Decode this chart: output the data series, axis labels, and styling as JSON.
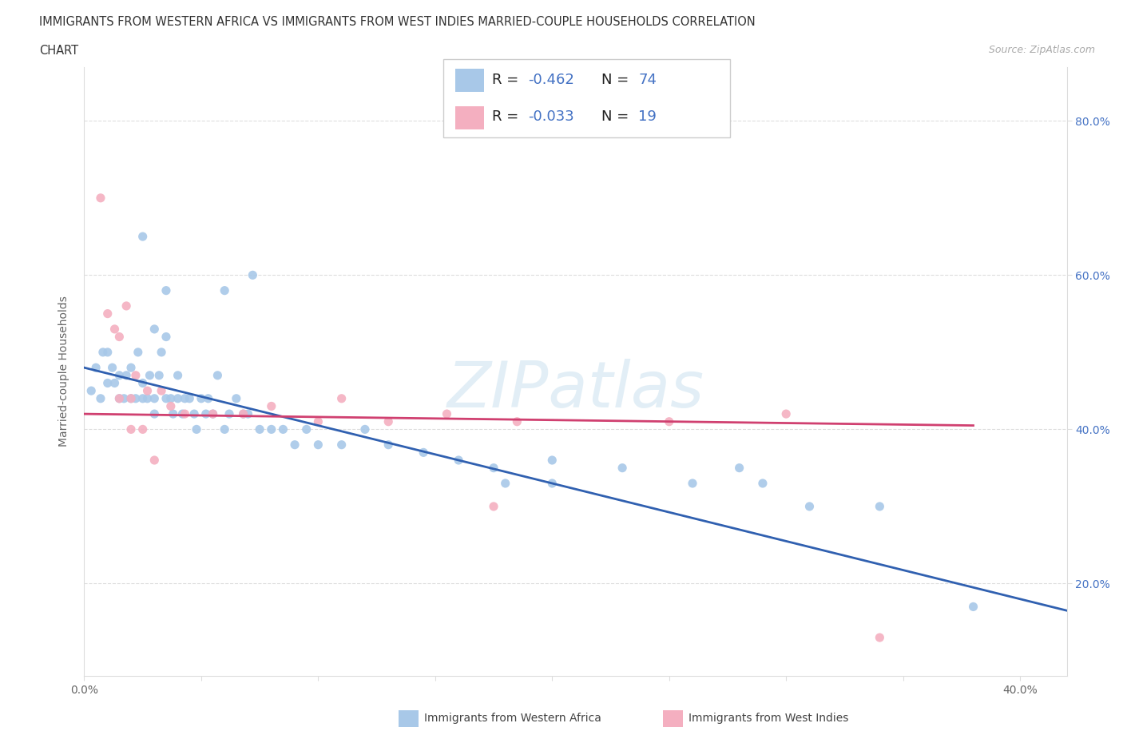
{
  "title_line1": "IMMIGRANTS FROM WESTERN AFRICA VS IMMIGRANTS FROM WEST INDIES MARRIED-COUPLE HOUSEHOLDS CORRELATION",
  "title_line2": "CHART",
  "source_text": "Source: ZipAtlas.com",
  "ylabel": "Married-couple Households",
  "xlim": [
    0.0,
    0.42
  ],
  "ylim": [
    0.08,
    0.87
  ],
  "blue_color": "#a8c8e8",
  "pink_color": "#f4afc0",
  "blue_line_color": "#3060b0",
  "pink_line_color": "#d04070",
  "legend_label_blue": "Immigrants from Western Africa",
  "legend_label_pink": "Immigrants from West Indies",
  "blue_R_text": "-0.462",
  "blue_N_text": "74",
  "pink_R_text": "-0.033",
  "pink_N_text": "19",
  "blue_scatter_x": [
    0.003,
    0.005,
    0.007,
    0.008,
    0.01,
    0.01,
    0.012,
    0.013,
    0.015,
    0.015,
    0.017,
    0.018,
    0.02,
    0.02,
    0.022,
    0.023,
    0.025,
    0.025,
    0.027,
    0.028,
    0.03,
    0.03,
    0.032,
    0.033,
    0.035,
    0.035,
    0.037,
    0.038,
    0.04,
    0.04,
    0.042,
    0.043,
    0.045,
    0.047,
    0.048,
    0.05,
    0.052,
    0.053,
    0.055,
    0.057,
    0.06,
    0.062,
    0.065,
    0.068,
    0.07,
    0.075,
    0.08,
    0.085,
    0.09,
    0.095,
    0.1,
    0.11,
    0.12,
    0.13,
    0.145,
    0.16,
    0.175,
    0.2,
    0.23,
    0.26,
    0.29,
    0.31,
    0.34,
    0.38
  ],
  "blue_scatter_y": [
    0.45,
    0.48,
    0.44,
    0.5,
    0.46,
    0.5,
    0.48,
    0.46,
    0.44,
    0.47,
    0.44,
    0.47,
    0.44,
    0.48,
    0.44,
    0.5,
    0.46,
    0.44,
    0.44,
    0.47,
    0.44,
    0.42,
    0.47,
    0.5,
    0.44,
    0.58,
    0.44,
    0.42,
    0.44,
    0.47,
    0.42,
    0.44,
    0.44,
    0.42,
    0.4,
    0.44,
    0.42,
    0.44,
    0.42,
    0.47,
    0.4,
    0.42,
    0.44,
    0.42,
    0.42,
    0.4,
    0.4,
    0.4,
    0.38,
    0.4,
    0.38,
    0.38,
    0.4,
    0.38,
    0.37,
    0.36,
    0.35,
    0.36,
    0.35,
    0.33,
    0.33,
    0.3,
    0.3,
    0.17
  ],
  "blue_scatter_special": [
    [
      0.025,
      0.65
    ],
    [
      0.06,
      0.58
    ],
    [
      0.072,
      0.6
    ],
    [
      0.03,
      0.53
    ],
    [
      0.035,
      0.52
    ],
    [
      0.18,
      0.33
    ],
    [
      0.2,
      0.33
    ],
    [
      0.28,
      0.35
    ]
  ],
  "pink_scatter_x": [
    0.007,
    0.013,
    0.018,
    0.022,
    0.027,
    0.033,
    0.037,
    0.043,
    0.055,
    0.068,
    0.08,
    0.1,
    0.11,
    0.13,
    0.155,
    0.185,
    0.25,
    0.3,
    0.34
  ],
  "pink_scatter_y": [
    0.7,
    0.53,
    0.56,
    0.47,
    0.45,
    0.45,
    0.43,
    0.42,
    0.42,
    0.42,
    0.43,
    0.41,
    0.44,
    0.41,
    0.42,
    0.41,
    0.41,
    0.42,
    0.13
  ],
  "pink_scatter_special": [
    [
      0.01,
      0.55
    ],
    [
      0.015,
      0.52
    ],
    [
      0.015,
      0.44
    ],
    [
      0.02,
      0.44
    ],
    [
      0.02,
      0.4
    ],
    [
      0.025,
      0.4
    ],
    [
      0.03,
      0.36
    ],
    [
      0.175,
      0.3
    ]
  ],
  "blue_trend_x": [
    0.0,
    0.42
  ],
  "blue_trend_y": [
    0.48,
    0.165
  ],
  "pink_trend_x": [
    0.0,
    0.38
  ],
  "pink_trend_y": [
    0.42,
    0.405
  ],
  "xticks": [
    0.0,
    0.05,
    0.1,
    0.15,
    0.2,
    0.25,
    0.3,
    0.35,
    0.4
  ],
  "xtick_labels": [
    "0.0%",
    "",
    "",
    "",
    "",
    "",
    "",
    "",
    "40.0%"
  ],
  "yticks": [
    0.2,
    0.4,
    0.6,
    0.8
  ],
  "ytick_labels": [
    "20.0%",
    "40.0%",
    "60.0%",
    "80.0%"
  ]
}
